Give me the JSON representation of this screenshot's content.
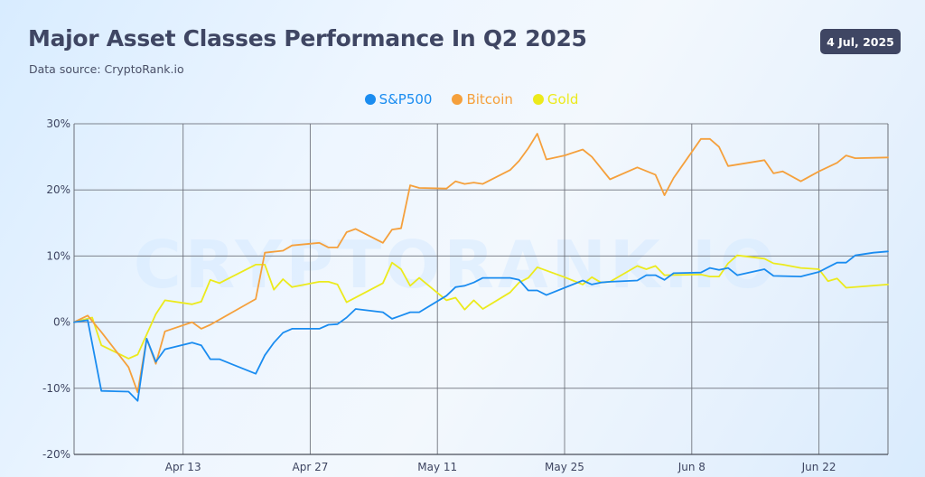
{
  "header": {
    "title": "Major Asset Classes Performance In Q2 2025",
    "subtitle": "Data source: CryptoRank.io",
    "date_badge": "4 Jul, 2025"
  },
  "watermark": "CRYPTORANK.IO",
  "chart_data": {
    "type": "line",
    "title": "Major Asset Classes Performance In Q2 2025",
    "xlabel": "",
    "ylabel": "",
    "x_unit": "day of Q2 2025 (Apr 1 = 1, May 1 = 31, Jun 1 = 62)",
    "xlim": [
      1,
      90.6
    ],
    "ylim": [
      -20,
      30
    ],
    "grid": true,
    "legend_position": "top-center",
    "x_ticks": [
      {
        "value": 13,
        "label": "Apr 13"
      },
      {
        "value": 27,
        "label": "Apr 27"
      },
      {
        "value": 41,
        "label": "May 11"
      },
      {
        "value": 55,
        "label": "May 25"
      },
      {
        "value": 69,
        "label": "Jun 8"
      },
      {
        "value": 83,
        "label": "Jun 22"
      }
    ],
    "y_ticks": [
      {
        "value": 30,
        "label": "30%"
      },
      {
        "value": 20,
        "label": "20%"
      },
      {
        "value": 10,
        "label": "10%"
      },
      {
        "value": 0,
        "label": "0%"
      },
      {
        "value": -10,
        "label": "-10%"
      },
      {
        "value": -20,
        "label": "-20%"
      }
    ],
    "series": [
      {
        "name": "S&P500",
        "color": "#1a8cf0",
        "points": [
          [
            1,
            0
          ],
          [
            2.5,
            0.3
          ],
          [
            4,
            -10.4
          ],
          [
            7,
            -10.5
          ],
          [
            8,
            -11.9
          ],
          [
            9,
            -2.5
          ],
          [
            10,
            -6.0
          ],
          [
            11,
            -4.1
          ],
          [
            14,
            -3.1
          ],
          [
            15,
            -3.5
          ],
          [
            16,
            -5.6
          ],
          [
            17,
            -5.6
          ],
          [
            21,
            -7.8
          ],
          [
            22,
            -5.0
          ],
          [
            23,
            -3.1
          ],
          [
            24,
            -1.6
          ],
          [
            25,
            -1.0
          ],
          [
            28,
            -1.0
          ],
          [
            29,
            -0.4
          ],
          [
            30,
            -0.3
          ],
          [
            31,
            0.7
          ],
          [
            32,
            2.0
          ],
          [
            35,
            1.5
          ],
          [
            36,
            0.5
          ],
          [
            37,
            1.0
          ],
          [
            38,
            1.5
          ],
          [
            39,
            1.5
          ],
          [
            42,
            4.0
          ],
          [
            43,
            5.3
          ],
          [
            44,
            5.5
          ],
          [
            45,
            6.0
          ],
          [
            46,
            6.7
          ],
          [
            49,
            6.7
          ],
          [
            50,
            6.4
          ],
          [
            51,
            4.8
          ],
          [
            52,
            4.8
          ],
          [
            53,
            4.1
          ],
          [
            57,
            6.3
          ],
          [
            58,
            5.7
          ],
          [
            59,
            6.0
          ],
          [
            60,
            6.1
          ],
          [
            63,
            6.3
          ],
          [
            64,
            7.1
          ],
          [
            65,
            7.1
          ],
          [
            66,
            6.4
          ],
          [
            67,
            7.4
          ],
          [
            70,
            7.5
          ],
          [
            71,
            8.2
          ],
          [
            72,
            7.9
          ],
          [
            73,
            8.2
          ],
          [
            74,
            7.1
          ],
          [
            77,
            8.0
          ],
          [
            78,
            7.0
          ],
          [
            81,
            6.9
          ],
          [
            83,
            7.6
          ],
          [
            84,
            8.3
          ],
          [
            85,
            9.0
          ],
          [
            86,
            9.0
          ],
          [
            87,
            10.1
          ],
          [
            89,
            10.5
          ],
          [
            90.6,
            10.7
          ]
        ]
      },
      {
        "name": "Bitcoin",
        "color": "#f5a03c",
        "points": [
          [
            1,
            0
          ],
          [
            2.5,
            1.0
          ],
          [
            4,
            -1.5
          ],
          [
            7,
            -6.8
          ],
          [
            8,
            -10.6
          ],
          [
            9,
            -2.5
          ],
          [
            10,
            -6.3
          ],
          [
            11,
            -1.4
          ],
          [
            14,
            0
          ],
          [
            15,
            -1.0
          ],
          [
            16,
            -0.4
          ],
          [
            21,
            3.5
          ],
          [
            22,
            10.5
          ],
          [
            24,
            10.8
          ],
          [
            25,
            11.6
          ],
          [
            28,
            12.0
          ],
          [
            29,
            11.3
          ],
          [
            30,
            11.3
          ],
          [
            31,
            13.6
          ],
          [
            32,
            14.1
          ],
          [
            35,
            12.0
          ],
          [
            36,
            14.0
          ],
          [
            37,
            14.2
          ],
          [
            38,
            20.7
          ],
          [
            39,
            20.3
          ],
          [
            42,
            20.2
          ],
          [
            43,
            21.3
          ],
          [
            44,
            20.9
          ],
          [
            45,
            21.1
          ],
          [
            46,
            20.9
          ],
          [
            49,
            23.0
          ],
          [
            50,
            24.4
          ],
          [
            51,
            26.3
          ],
          [
            52,
            28.5
          ],
          [
            53,
            24.6
          ],
          [
            55,
            25.2
          ],
          [
            57,
            26.1
          ],
          [
            58,
            25.0
          ],
          [
            60,
            21.6
          ],
          [
            63,
            23.4
          ],
          [
            65,
            22.3
          ],
          [
            66,
            19.2
          ],
          [
            67,
            21.8
          ],
          [
            70,
            27.7
          ],
          [
            71,
            27.7
          ],
          [
            72,
            26.5
          ],
          [
            73,
            23.6
          ],
          [
            77,
            24.5
          ],
          [
            78,
            22.5
          ],
          [
            79,
            22.8
          ],
          [
            81,
            21.3
          ],
          [
            83,
            22.8
          ],
          [
            85,
            24.1
          ],
          [
            86,
            25.2
          ],
          [
            87,
            24.8
          ],
          [
            90.6,
            24.9
          ]
        ]
      },
      {
        "name": "Gold",
        "color": "#ecea1c",
        "points": [
          [
            1,
            0
          ],
          [
            3,
            0.7
          ],
          [
            4,
            -3.5
          ],
          [
            7,
            -5.5
          ],
          [
            8,
            -4.9
          ],
          [
            10,
            1.2
          ],
          [
            11,
            3.3
          ],
          [
            14,
            2.7
          ],
          [
            15,
            3.1
          ],
          [
            16,
            6.4
          ],
          [
            17,
            5.9
          ],
          [
            21,
            8.7
          ],
          [
            22,
            8.7
          ],
          [
            23,
            4.9
          ],
          [
            24,
            6.5
          ],
          [
            25,
            5.3
          ],
          [
            28,
            6.1
          ],
          [
            29,
            6.1
          ],
          [
            30,
            5.7
          ],
          [
            31,
            3.0
          ],
          [
            35,
            5.9
          ],
          [
            36,
            9.0
          ],
          [
            37,
            8.0
          ],
          [
            38,
            5.5
          ],
          [
            39,
            6.7
          ],
          [
            42,
            3.3
          ],
          [
            43,
            3.7
          ],
          [
            44,
            1.9
          ],
          [
            45,
            3.3
          ],
          [
            46,
            2.0
          ],
          [
            49,
            4.5
          ],
          [
            50,
            6.0
          ],
          [
            51,
            6.7
          ],
          [
            52,
            8.3
          ],
          [
            55,
            6.8
          ],
          [
            57,
            5.7
          ],
          [
            58,
            6.8
          ],
          [
            59,
            6.0
          ],
          [
            60,
            6.1
          ],
          [
            63,
            8.5
          ],
          [
            64,
            8.0
          ],
          [
            65,
            8.5
          ],
          [
            66,
            7.1
          ],
          [
            70,
            7.2
          ],
          [
            71,
            6.9
          ],
          [
            72,
            6.9
          ],
          [
            73,
            8.9
          ],
          [
            74,
            10.1
          ],
          [
            77,
            9.6
          ],
          [
            78,
            8.9
          ],
          [
            79,
            8.7
          ],
          [
            81,
            8.2
          ],
          [
            83,
            8.0
          ],
          [
            84,
            6.2
          ],
          [
            85,
            6.6
          ],
          [
            86,
            5.2
          ],
          [
            90.6,
            5.7
          ]
        ]
      }
    ]
  }
}
